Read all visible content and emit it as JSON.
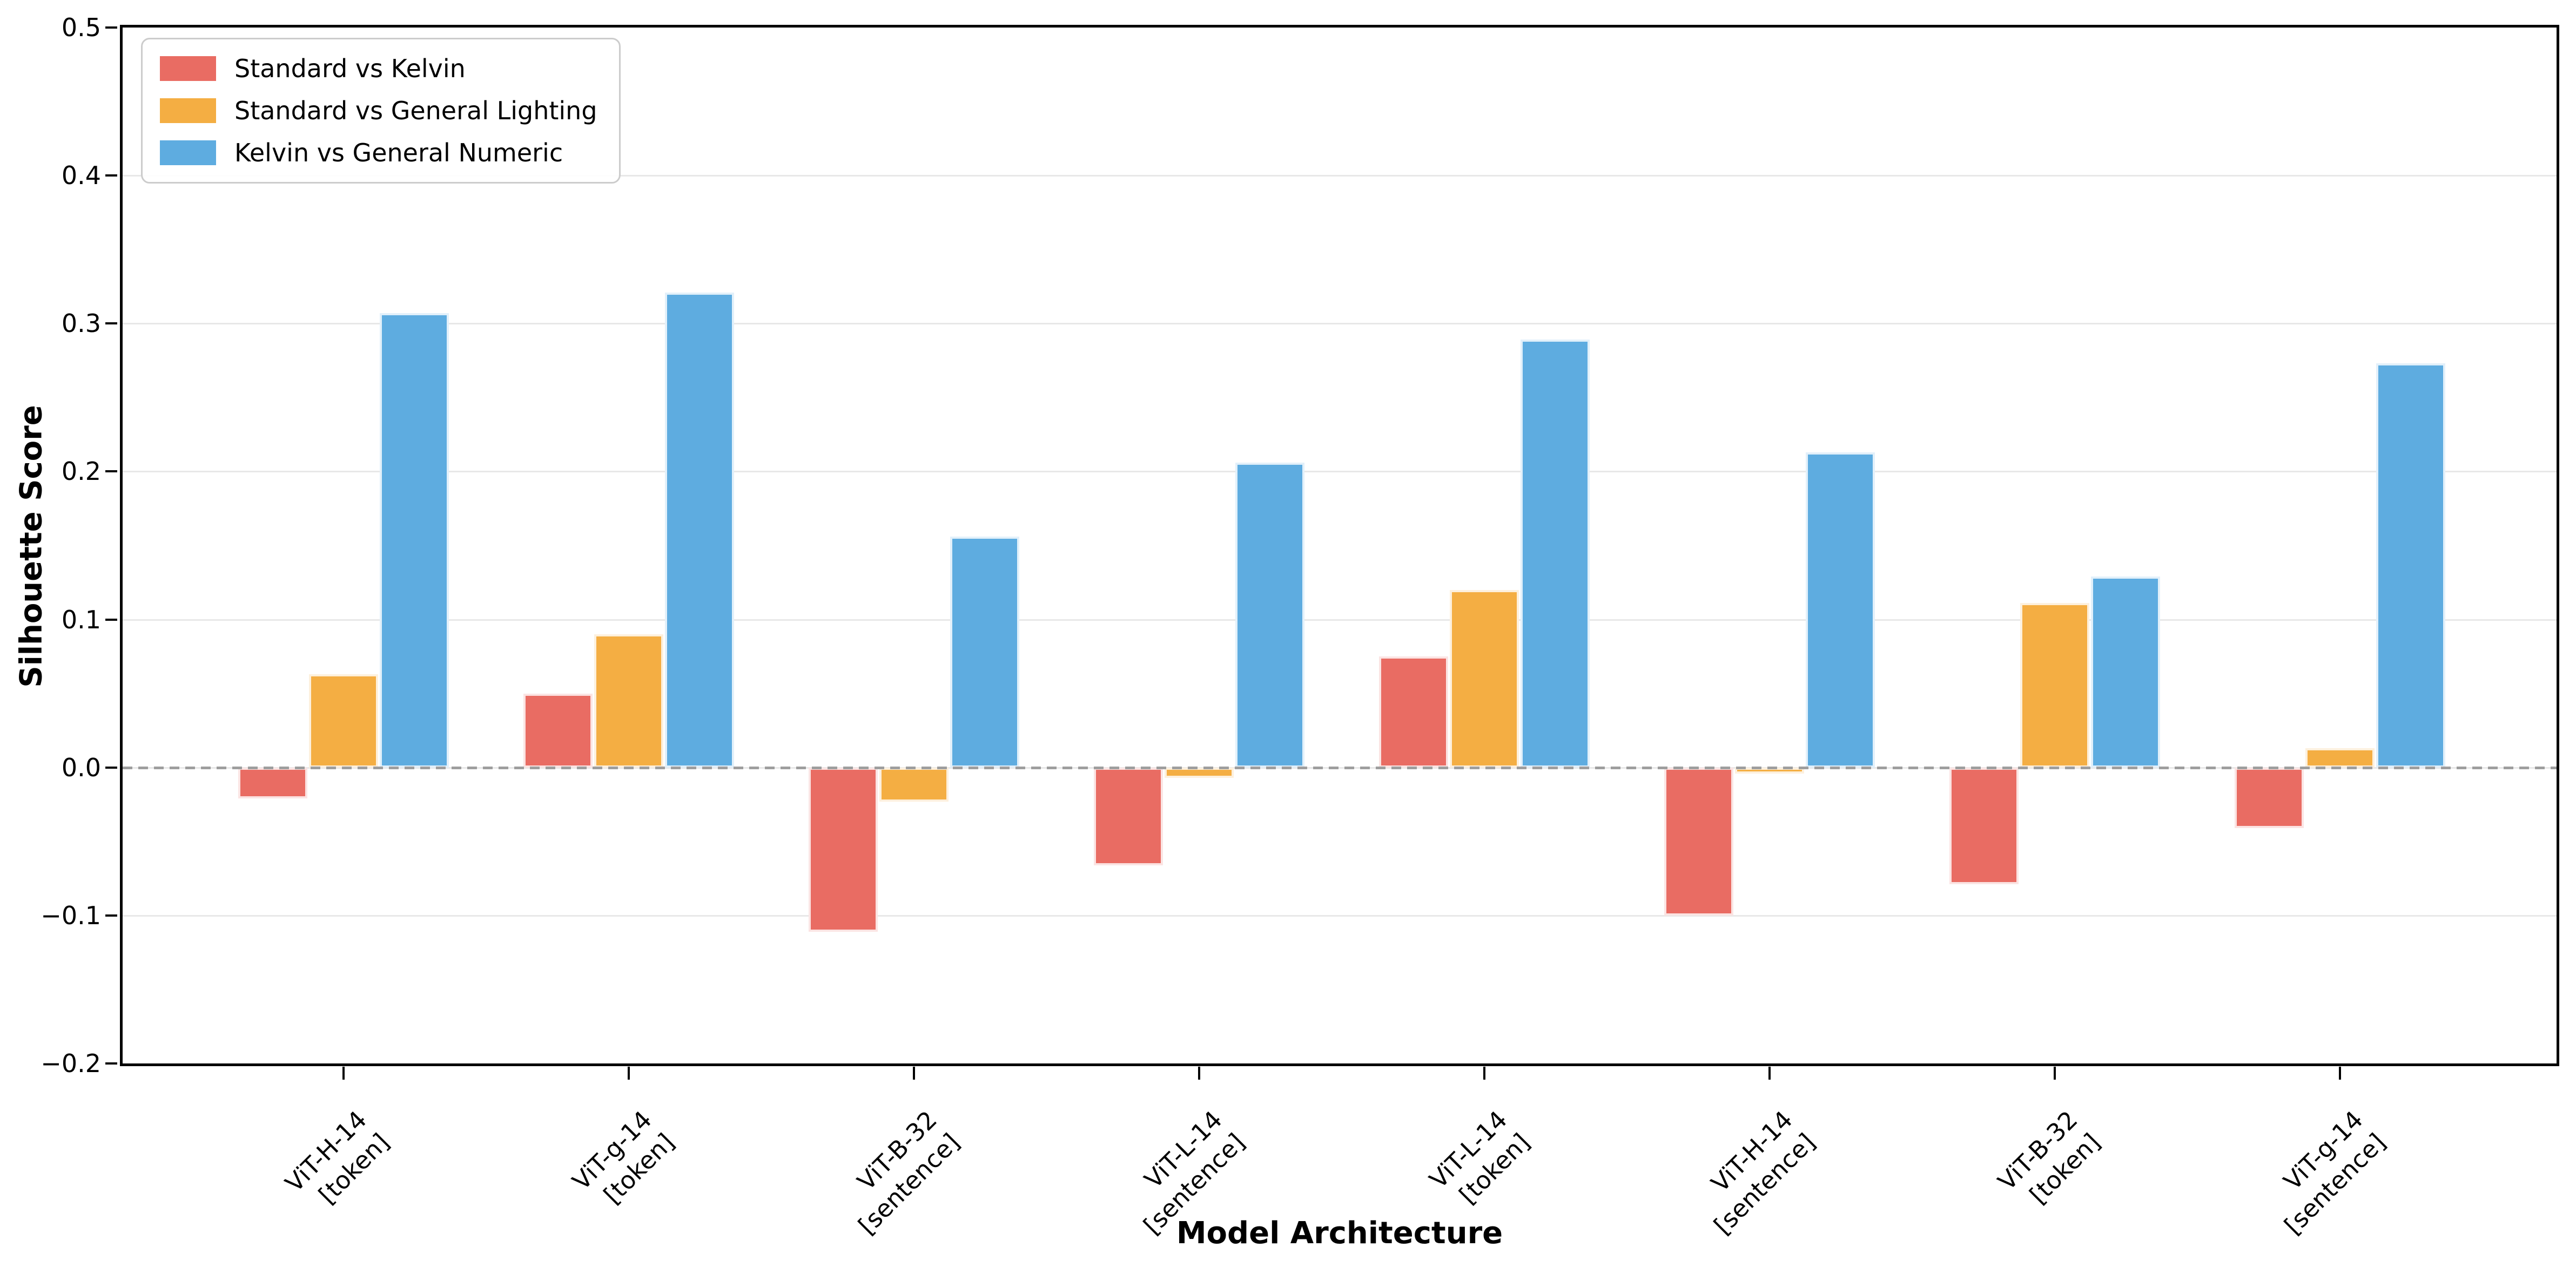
{
  "figure": {
    "background": "#ffffff"
  },
  "axes": {
    "x_label": "Model Architecture",
    "y_label": "Silhouette Score",
    "spine_color": "#000000",
    "gridline_color": "#e8e8e8",
    "zero_line_color": "#9e9e9e"
  },
  "legend": {
    "position": "upper-left",
    "border_color": "#cccccc"
  },
  "chart_data": {
    "type": "bar",
    "title": "",
    "xlabel": "Model Architecture",
    "ylabel": "Silhouette Score",
    "ylim": [
      -0.2,
      0.5
    ],
    "grid": "horizontal",
    "legend_position": "upper left",
    "zero_line": "dashed gray at y=0",
    "categories": [
      "ViT-H-14\n[token]",
      "ViT-g-14\n[token]",
      "ViT-B-32\n[sentence]",
      "ViT-L-14\n[sentence]",
      "ViT-L-14\n[token]",
      "ViT-H-14\n[sentence]",
      "ViT-B-32\n[token]",
      "ViT-g-14\n[sentence]"
    ],
    "series": [
      {
        "name": "Standard vs Kelvin",
        "color": "#e96c63",
        "values": [
          -0.021,
          0.05,
          -0.111,
          -0.066,
          0.075,
          -0.1,
          -0.079,
          -0.041
        ]
      },
      {
        "name": "Standard vs General Lighting",
        "color": "#f4ae43",
        "values": [
          0.063,
          0.09,
          -0.023,
          -0.007,
          0.12,
          -0.004,
          0.111,
          0.013
        ]
      },
      {
        "name": "Kelvin vs General Numeric",
        "color": "#5eace0",
        "values": [
          0.307,
          0.321,
          0.156,
          0.206,
          0.289,
          0.213,
          0.129,
          0.273
        ]
      }
    ],
    "yticks": [
      0.5,
      0.4,
      0.3,
      0.2,
      0.1,
      0.0,
      -0.1,
      -0.2
    ],
    "ytick_labels": [
      "0.5",
      "0.4",
      "0.3",
      "0.2",
      "0.1",
      "0.0",
      "−0.1",
      "−0.2"
    ]
  }
}
